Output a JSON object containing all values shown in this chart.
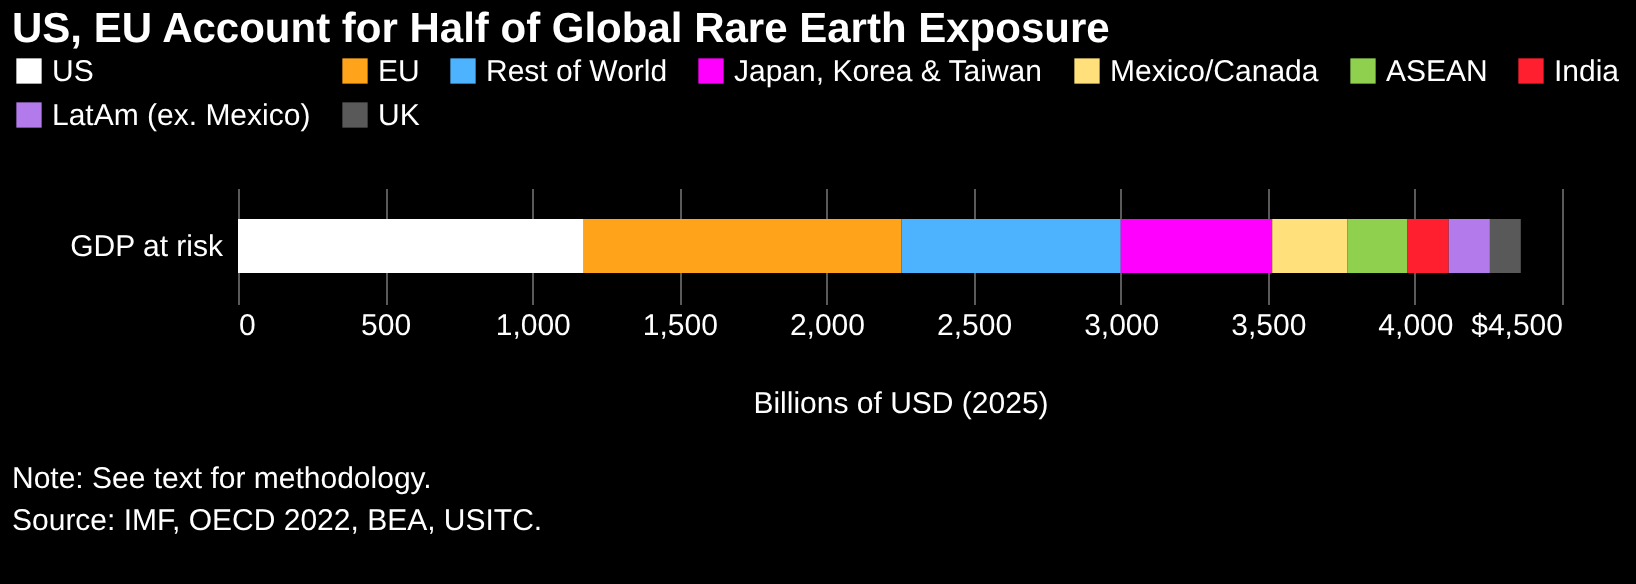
{
  "chart_data": {
    "type": "bar",
    "orientation": "horizontal",
    "stacked": true,
    "title": "US, EU Account for Half of Global Rare Earth Exposure",
    "categories": [
      "GDP at risk"
    ],
    "series": [
      {
        "name": "US",
        "color": "#ffffff",
        "values": [
          1175
        ]
      },
      {
        "name": "EU",
        "color": "#ffa31a",
        "values": [
          1080
        ]
      },
      {
        "name": "Rest of World",
        "color": "#4db3ff",
        "values": [
          745
        ]
      },
      {
        "name": "Japan, Korea & Taiwan",
        "color": "#ff00ff",
        "values": [
          515
        ]
      },
      {
        "name": "Mexico/Canada",
        "color": "#ffe07a",
        "values": [
          255
        ]
      },
      {
        "name": "ASEAN",
        "color": "#8fd14f",
        "values": [
          205
        ]
      },
      {
        "name": "India",
        "color": "#ff1f2e",
        "values": [
          140
        ]
      },
      {
        "name": "LatAm (ex. Mexico)",
        "color": "#b27aeb",
        "values": [
          140
        ]
      },
      {
        "name": "UK",
        "color": "#595959",
        "values": [
          105
        ]
      }
    ],
    "xlim": [
      0,
      4500
    ],
    "xticks": [
      0,
      500,
      {
        "value": 1000,
        "label": "1,000"
      },
      {
        "value": 1500,
        "label": "1,500"
      },
      {
        "value": 2000,
        "label": "2,000"
      },
      {
        "value": 2500,
        "label": "2,500"
      },
      {
        "value": 3000,
        "label": "3,000"
      },
      {
        "value": 3500,
        "label": "3,500"
      },
      {
        "value": 4000,
        "label": "4,000"
      },
      {
        "value": 4500,
        "label": "$4,500"
      }
    ],
    "xlabel": "Billions of USD (2025)",
    "grid": "x",
    "legend": "top",
    "annotations": [
      "Note: See text for methodology.",
      "Source: IMF, OECD 2022, BEA, USITC."
    ]
  }
}
